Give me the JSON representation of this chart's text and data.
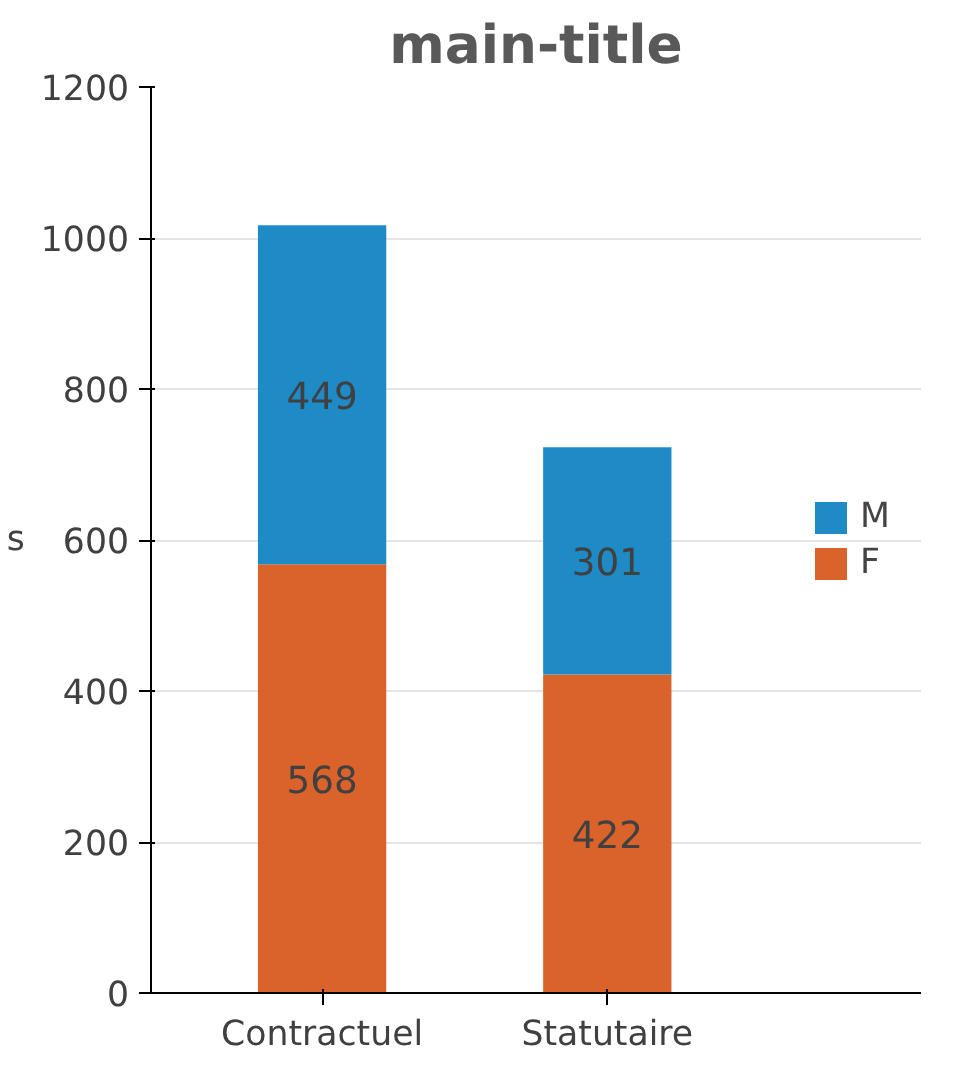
{
  "chart_data": {
    "type": "bar",
    "title": "main-title",
    "ylabel": "s",
    "categories": [
      "Contractuel",
      "Statutaire"
    ],
    "stacked": true,
    "series": [
      {
        "name": "F",
        "color": "#d9632b",
        "values": [
          568,
          422
        ]
      },
      {
        "name": "M",
        "color": "#1e8bc7",
        "values": [
          449,
          301
        ]
      }
    ],
    "ylim": [
      0,
      1200
    ],
    "yticks": [
      0,
      200,
      400,
      600,
      800,
      1000,
      1200
    ],
    "grid": "y",
    "legend": "right",
    "data_labels": true
  }
}
